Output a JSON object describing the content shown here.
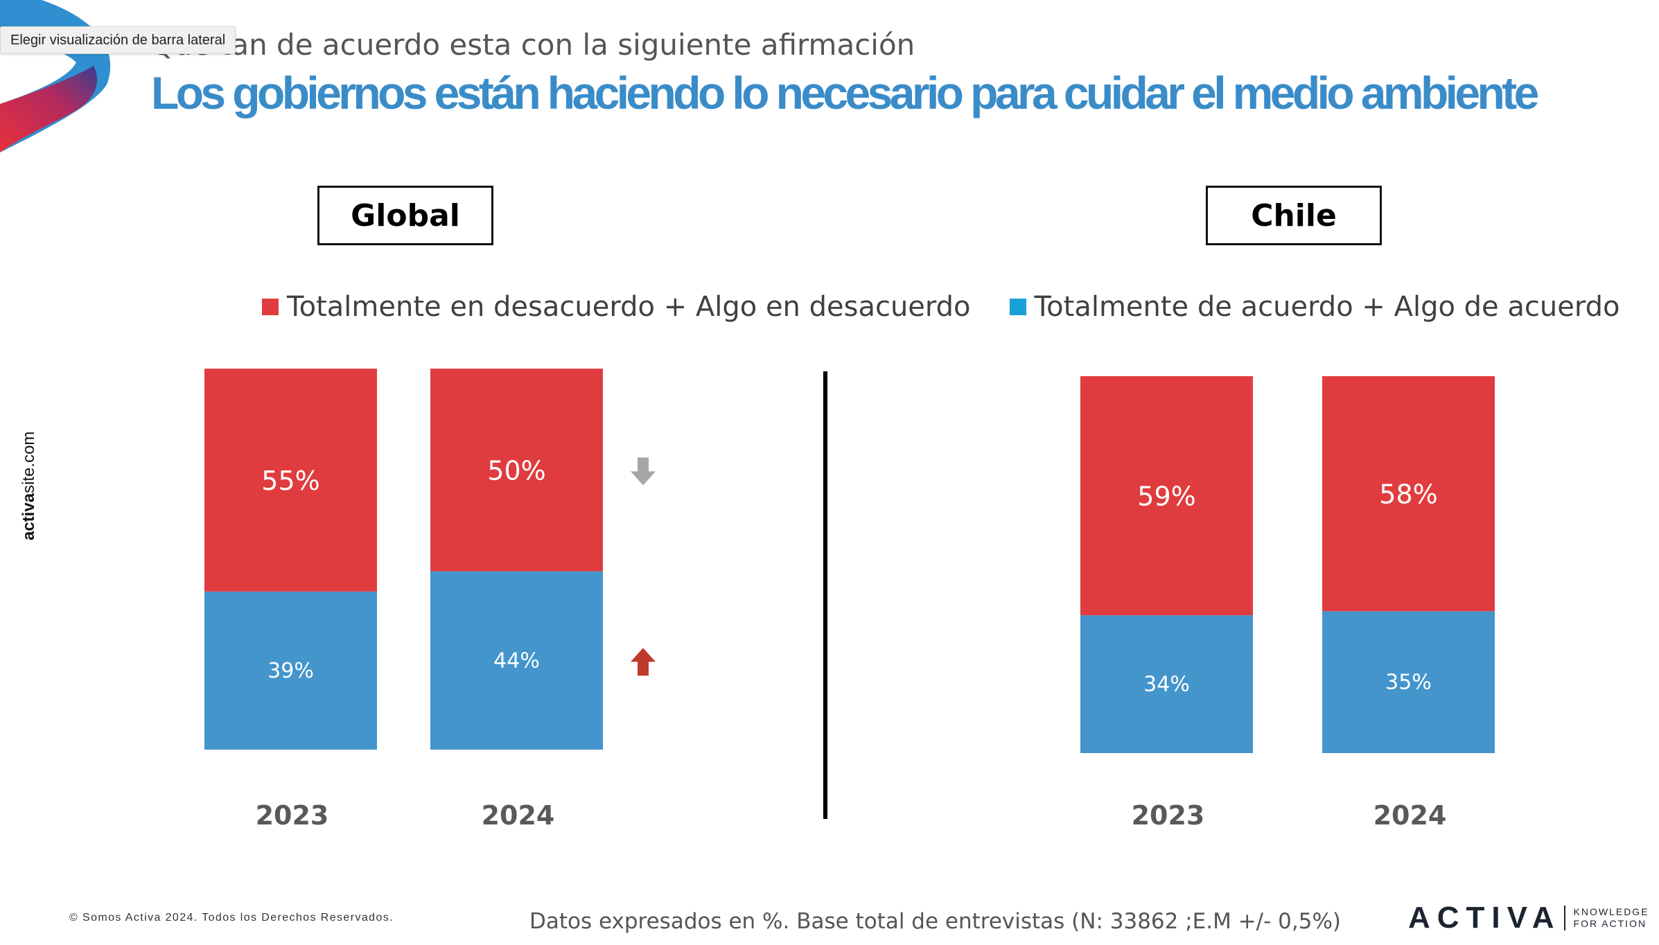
{
  "tooltip": "Elegir visualización de barra lateral",
  "subtitle": "Qué tan de acuerdo esta con la siguiente afirmación",
  "title": "Los gobiernos están haciendo lo necesario para cuidar el medio ambiente",
  "side_brand": {
    "bold": "activa",
    "rest": "site.com"
  },
  "groups": {
    "left": "Global",
    "right": "Chile"
  },
  "legend": [
    {
      "label": "Totalmente en desacuerdo + Algo en desacuerdo",
      "color": "#e03c3f"
    },
    {
      "label": "Totalmente de acuerdo + Algo de acuerdo",
      "color": "#4395cc"
    }
  ],
  "chart_data": [
    {
      "type": "bar",
      "stacked": true,
      "title": "Global",
      "categories": [
        "2023",
        "2024"
      ],
      "series": [
        {
          "name": "Totalmente de acuerdo + Algo de acuerdo",
          "values": [
            39,
            44
          ],
          "labels": [
            "39%",
            "44%"
          ],
          "color": "#4395cc"
        },
        {
          "name": "Totalmente en desacuerdo + Algo en desacuerdo",
          "values": [
            55,
            50
          ],
          "labels": [
            "55%",
            "50%"
          ],
          "color": "#e03c3f"
        }
      ],
      "trend_arrows": [
        {
          "series": "Totalmente en desacuerdo + Algo en desacuerdo",
          "direction": "down",
          "color": "#a6a6a6"
        },
        {
          "series": "Totalmente de acuerdo + Algo de acuerdo",
          "direction": "up",
          "color": "#c0392b"
        }
      ]
    },
    {
      "type": "bar",
      "stacked": true,
      "title": "Chile",
      "categories": [
        "2023",
        "2024"
      ],
      "series": [
        {
          "name": "Totalmente de acuerdo + Algo de acuerdo",
          "values": [
            34,
            35
          ],
          "labels": [
            "34%",
            "35%"
          ],
          "color": "#4395cc"
        },
        {
          "name": "Totalmente en desacuerdo + Algo en desacuerdo",
          "values": [
            59,
            58
          ],
          "labels": [
            "59%",
            "58%"
          ],
          "color": "#e03c3f"
        }
      ]
    }
  ],
  "footer": {
    "copyright": "© Somos Activa 2024. Todos los Derechos Reservados.",
    "note": "Datos expresados  en %. Base total de entrevistas  (N: 33862  ;E.M +/- 0,5%)",
    "brand": "ACTIVA",
    "tagline_1": "KNOWLEDGE",
    "tagline_2": "FOR ACTION"
  }
}
